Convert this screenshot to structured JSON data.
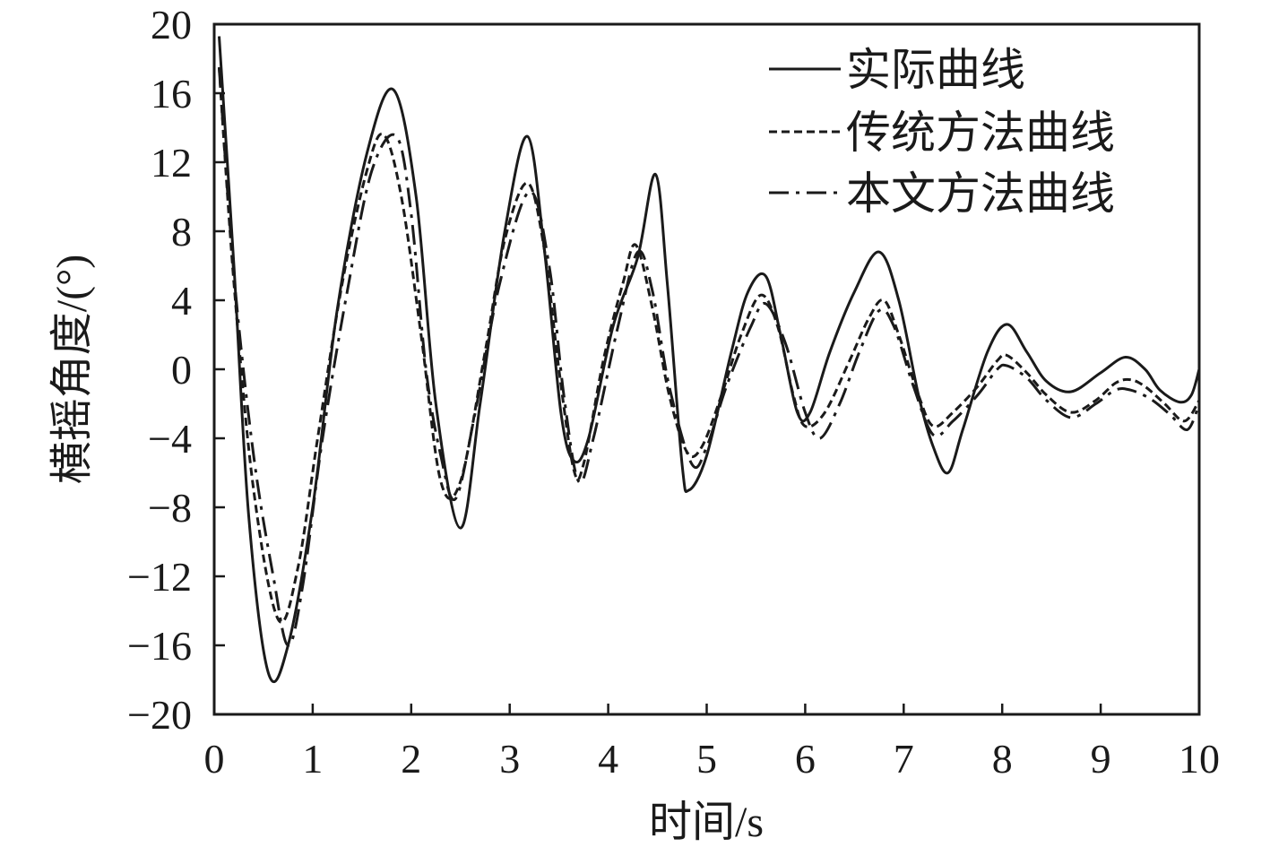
{
  "chart_data": {
    "type": "line",
    "xlabel": "时间/s",
    "ylabel": "横摇角度/(°)",
    "xlim": [
      0,
      10
    ],
    "ylim": [
      -20,
      20
    ],
    "x_ticks": [
      0,
      1,
      2,
      3,
      4,
      5,
      6,
      7,
      8,
      9,
      10
    ],
    "y_ticks": [
      20,
      16,
      12,
      8,
      4,
      0,
      -4,
      -8,
      -12,
      -16,
      -20
    ],
    "y_tick_labels": [
      "20",
      "16",
      "12",
      "8",
      "4",
      "0",
      "−4",
      "−8",
      "−12",
      "−16",
      "−20"
    ],
    "grid": false,
    "legend_position": "top-right",
    "series": [
      {
        "name": "实际曲线",
        "style": "solid",
        "color": "#1a1a1a",
        "points": [
          [
            0.05,
            19.3
          ],
          [
            0.2,
            6.0
          ],
          [
            0.35,
            -8.5
          ],
          [
            0.55,
            -17.6
          ],
          [
            0.75,
            -16.0
          ],
          [
            1.0,
            -8.0
          ],
          [
            1.25,
            3.5
          ],
          [
            1.55,
            12.5
          ],
          [
            1.82,
            16.2
          ],
          [
            2.05,
            10.0
          ],
          [
            2.25,
            -2.0
          ],
          [
            2.5,
            -9.2
          ],
          [
            2.7,
            -2.0
          ],
          [
            2.95,
            8.0
          ],
          [
            3.18,
            13.5
          ],
          [
            3.35,
            7.0
          ],
          [
            3.52,
            -2.5
          ],
          [
            3.65,
            -5.3
          ],
          [
            3.8,
            -4.0
          ],
          [
            4.05,
            2.5
          ],
          [
            4.3,
            6.5
          ],
          [
            4.48,
            11.3
          ],
          [
            4.6,
            5.0
          ],
          [
            4.75,
            -5.5
          ],
          [
            4.82,
            -7.0
          ],
          [
            5.0,
            -5.0
          ],
          [
            5.25,
            1.0
          ],
          [
            5.42,
            4.5
          ],
          [
            5.6,
            5.4
          ],
          [
            5.75,
            2.0
          ],
          [
            5.92,
            -2.5
          ],
          [
            6.05,
            -2.5
          ],
          [
            6.25,
            1.0
          ],
          [
            6.5,
            4.5
          ],
          [
            6.75,
            6.8
          ],
          [
            6.95,
            4.0
          ],
          [
            7.15,
            -1.5
          ],
          [
            7.3,
            -4.5
          ],
          [
            7.45,
            -6.0
          ],
          [
            7.6,
            -3.5
          ],
          [
            7.85,
            1.0
          ],
          [
            8.05,
            2.6
          ],
          [
            8.25,
            1.0
          ],
          [
            8.45,
            -0.7
          ],
          [
            8.7,
            -1.3
          ],
          [
            9.0,
            -0.2
          ],
          [
            9.25,
            0.7
          ],
          [
            9.45,
            0.0
          ],
          [
            9.6,
            -1.2
          ],
          [
            9.8,
            -1.9
          ],
          [
            9.92,
            -1.5
          ],
          [
            10.0,
            0.0
          ]
        ]
      },
      {
        "name": "传统方法曲线",
        "style": "dashed",
        "color": "#1a1a1a",
        "points": [
          [
            0.05,
            17.5
          ],
          [
            0.2,
            5.0
          ],
          [
            0.4,
            -7.0
          ],
          [
            0.65,
            -14.5
          ],
          [
            0.85,
            -11.5
          ],
          [
            1.05,
            -4.0
          ],
          [
            1.3,
            5.0
          ],
          [
            1.55,
            11.5
          ],
          [
            1.72,
            13.6
          ],
          [
            1.9,
            10.0
          ],
          [
            2.1,
            2.0
          ],
          [
            2.3,
            -6.5
          ],
          [
            2.5,
            -6.5
          ],
          [
            2.75,
            1.0
          ],
          [
            2.95,
            7.5
          ],
          [
            3.18,
            10.8
          ],
          [
            3.35,
            7.0
          ],
          [
            3.5,
            0.0
          ],
          [
            3.65,
            -5.8
          ],
          [
            3.75,
            -5.5
          ],
          [
            3.95,
            0.5
          ],
          [
            4.15,
            5.0
          ],
          [
            4.28,
            7.2
          ],
          [
            4.45,
            3.5
          ],
          [
            4.62,
            -1.5
          ],
          [
            4.8,
            -4.8
          ],
          [
            4.95,
            -4.5
          ],
          [
            5.15,
            -1.5
          ],
          [
            5.35,
            2.0
          ],
          [
            5.55,
            4.3
          ],
          [
            5.72,
            2.5
          ],
          [
            5.88,
            -1.5
          ],
          [
            6.0,
            -3.3
          ],
          [
            6.2,
            -2.5
          ],
          [
            6.45,
            0.5
          ],
          [
            6.65,
            3.0
          ],
          [
            6.8,
            4.0
          ],
          [
            6.95,
            2.0
          ],
          [
            7.15,
            -1.5
          ],
          [
            7.3,
            -3.3
          ],
          [
            7.5,
            -2.5
          ],
          [
            7.75,
            -1.0
          ],
          [
            7.95,
            0.5
          ],
          [
            8.05,
            0.8
          ],
          [
            8.25,
            -0.2
          ],
          [
            8.45,
            -1.5
          ],
          [
            8.7,
            -2.5
          ],
          [
            8.95,
            -1.8
          ],
          [
            9.15,
            -0.8
          ],
          [
            9.3,
            -0.6
          ],
          [
            9.45,
            -1.0
          ],
          [
            9.65,
            -2.0
          ],
          [
            9.85,
            -3.0
          ],
          [
            10.0,
            -1.8
          ]
        ]
      },
      {
        "name": "本文方法曲线",
        "style": "dashdot",
        "color": "#1a1a1a",
        "points": [
          [
            0.05,
            17.5
          ],
          [
            0.2,
            5.5
          ],
          [
            0.4,
            -5.0
          ],
          [
            0.6,
            -12.0
          ],
          [
            0.75,
            -16.0
          ],
          [
            0.9,
            -12.5
          ],
          [
            1.1,
            -4.0
          ],
          [
            1.35,
            4.5
          ],
          [
            1.6,
            11.5
          ],
          [
            1.85,
            13.5
          ],
          [
            2.0,
            9.0
          ],
          [
            2.15,
            0.0
          ],
          [
            2.3,
            -5.0
          ],
          [
            2.45,
            -7.5
          ],
          [
            2.65,
            -2.5
          ],
          [
            2.9,
            5.0
          ],
          [
            3.2,
            10.3
          ],
          [
            3.4,
            6.0
          ],
          [
            3.55,
            -1.5
          ],
          [
            3.7,
            -6.5
          ],
          [
            3.85,
            -4.0
          ],
          [
            4.1,
            2.5
          ],
          [
            4.3,
            6.8
          ],
          [
            4.45,
            4.5
          ],
          [
            4.62,
            -1.0
          ],
          [
            4.85,
            -5.5
          ],
          [
            5.0,
            -4.5
          ],
          [
            5.2,
            -1.0
          ],
          [
            5.45,
            2.5
          ],
          [
            5.6,
            3.8
          ],
          [
            5.8,
            1.5
          ],
          [
            6.0,
            -2.5
          ],
          [
            6.15,
            -4.0
          ],
          [
            6.35,
            -2.0
          ],
          [
            6.55,
            1.0
          ],
          [
            6.75,
            3.4
          ],
          [
            6.9,
            2.5
          ],
          [
            7.1,
            -1.0
          ],
          [
            7.3,
            -3.8
          ],
          [
            7.5,
            -3.0
          ],
          [
            7.75,
            -1.5
          ],
          [
            7.95,
            0.0
          ],
          [
            8.05,
            0.2
          ],
          [
            8.25,
            -0.5
          ],
          [
            8.45,
            -1.8
          ],
          [
            8.7,
            -2.8
          ],
          [
            8.95,
            -2.0
          ],
          [
            9.15,
            -1.2
          ],
          [
            9.3,
            -1.2
          ],
          [
            9.5,
            -1.7
          ],
          [
            9.7,
            -2.6
          ],
          [
            9.88,
            -3.5
          ],
          [
            10.0,
            -2.0
          ]
        ]
      }
    ]
  }
}
